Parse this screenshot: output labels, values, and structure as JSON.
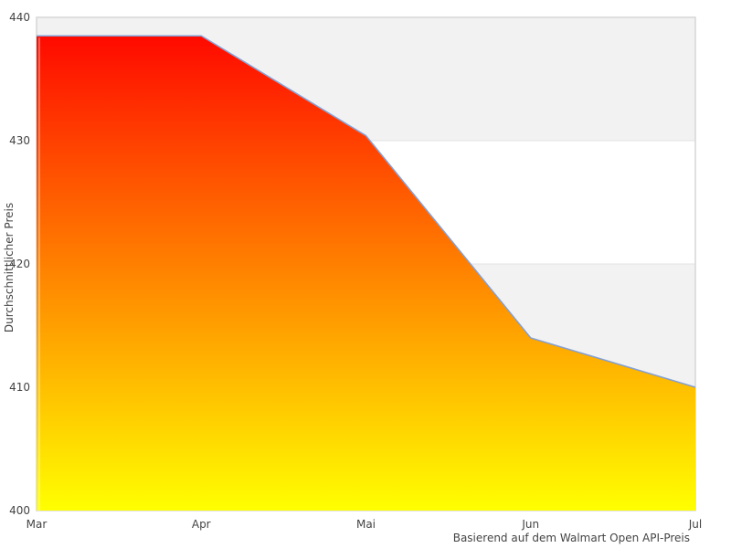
{
  "chart_data": {
    "type": "area",
    "title": "",
    "categories": [
      "Mar",
      "Apr",
      "Mai",
      "Jun",
      "Jul"
    ],
    "values": [
      438.5,
      438.5,
      430.4,
      414,
      410
    ],
    "series": [
      {
        "name": "Durchschnittlicher Preis",
        "values": [
          438.5,
          438.5,
          430.4,
          414,
          410
        ]
      }
    ],
    "xlabel": "",
    "ylabel": "Durchschnittlicher Preis",
    "ylim": [
      400,
      440
    ],
    "yticks": [
      400,
      410,
      420,
      430,
      440
    ],
    "grid": "alternating-horizontal-bands",
    "legend": "none",
    "caption": "Basierend auf dem Walmart Open API-Preis",
    "colors": {
      "area_gradient_top": "#ff0000",
      "area_gradient_bottom": "#ffff00",
      "line": "#85a0d2",
      "band": "#f2f2f2",
      "gridline": "#e3e3e3",
      "border": "#d6d6d6",
      "text": "#444444",
      "background": "#ffffff"
    }
  }
}
